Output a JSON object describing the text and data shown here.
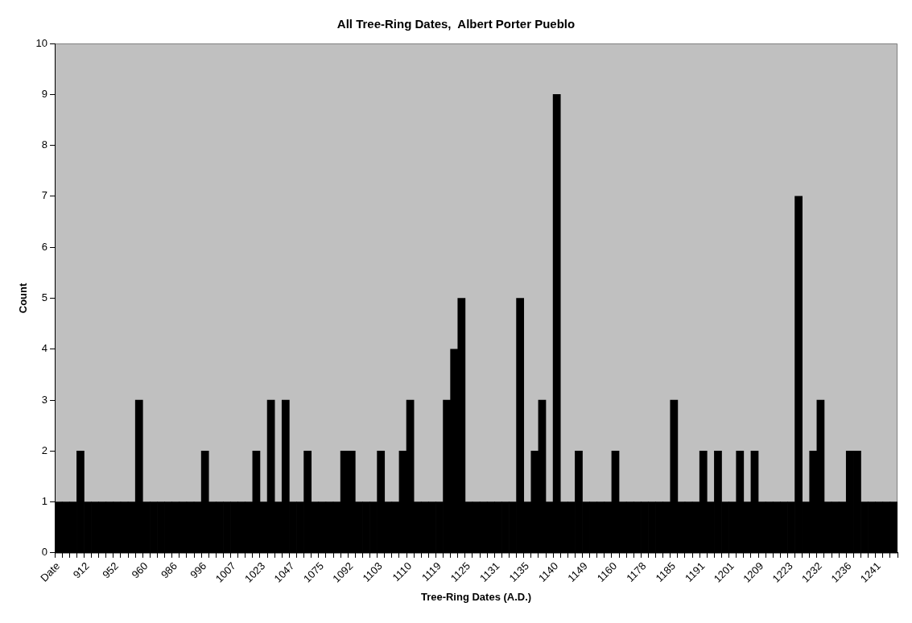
{
  "chart_data": {
    "type": "bar",
    "title": "All Tree-Ring Dates,  Albert Porter Pueblo",
    "xlabel": "Tree-Ring Dates (A.D.)",
    "ylabel": "Count",
    "categories": [
      "Date",
      null,
      null,
      null,
      "912",
      null,
      null,
      null,
      "952",
      null,
      null,
      null,
      "960",
      null,
      null,
      null,
      "986",
      null,
      null,
      null,
      "996",
      null,
      null,
      null,
      "1007",
      null,
      null,
      null,
      "1023",
      null,
      null,
      null,
      "1047",
      null,
      null,
      null,
      "1075",
      null,
      null,
      null,
      "1092",
      null,
      null,
      null,
      "1103",
      null,
      null,
      null,
      "1110",
      null,
      null,
      null,
      "1119",
      null,
      null,
      null,
      "1125",
      null,
      null,
      null,
      "1131",
      null,
      null,
      null,
      "1135",
      null,
      null,
      null,
      "1140",
      null,
      null,
      null,
      "1149",
      null,
      null,
      null,
      "1160",
      null,
      null,
      null,
      "1178",
      null,
      null,
      null,
      "1185",
      null,
      null,
      null,
      "1191",
      null,
      null,
      null,
      "1201",
      null,
      null,
      null,
      "1209",
      null,
      null,
      null,
      "1223",
      null,
      null,
      null,
      "1232",
      null,
      null,
      null,
      "1236",
      null,
      null,
      null,
      "1241",
      null,
      null
    ],
    "values": [
      1,
      1,
      1,
      2,
      1,
      1,
      1,
      1,
      1,
      1,
      1,
      3,
      1,
      1,
      1,
      1,
      1,
      1,
      1,
      1,
      2,
      1,
      1,
      1,
      1,
      1,
      1,
      2,
      1,
      3,
      1,
      3,
      1,
      1,
      2,
      1,
      1,
      1,
      1,
      2,
      2,
      1,
      1,
      1,
      2,
      1,
      1,
      2,
      3,
      1,
      1,
      1,
      1,
      3,
      4,
      5,
      1,
      1,
      1,
      1,
      1,
      1,
      1,
      5,
      1,
      2,
      3,
      1,
      9,
      1,
      1,
      2,
      1,
      1,
      1,
      1,
      2,
      1,
      1,
      1,
      1,
      1,
      1,
      1,
      3,
      1,
      1,
      1,
      2,
      1,
      2,
      1,
      1,
      2,
      1,
      2,
      1,
      1,
      1,
      1,
      1,
      7,
      1,
      2,
      3,
      1,
      1,
      1,
      2,
      2,
      1,
      1,
      1,
      1,
      1
    ],
    "color": "#000000",
    "ylim": [
      0,
      10
    ],
    "yticks": [
      0,
      1,
      2,
      3,
      4,
      5,
      6,
      7,
      8,
      9,
      10
    ]
  }
}
